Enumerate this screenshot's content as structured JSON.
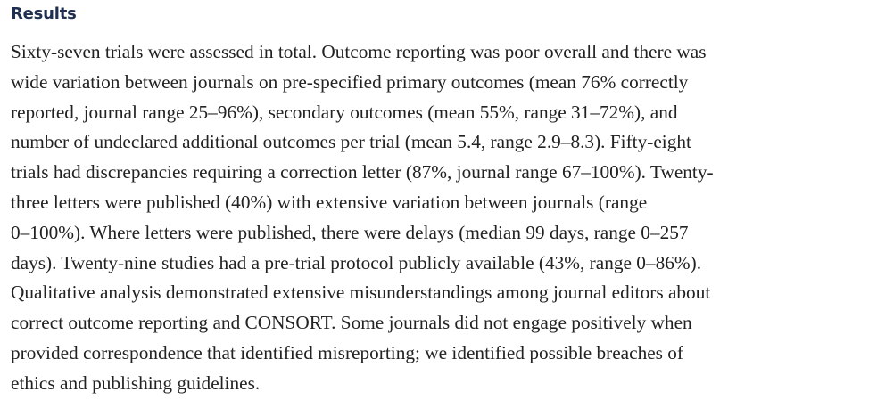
{
  "section": {
    "heading": "Results",
    "lines": [
      "Sixty-seven trials were assessed in total. Outcome reporting was poor overall and there was",
      "wide variation between journals on pre-specified primary outcomes (mean 76% correctly",
      "reported, journal range 25–96%), secondary outcomes (mean 55%, range 31–72%), and",
      "number of undeclared additional outcomes per trial (mean 5.4, range 2.9–8.3). Fifty-eight",
      "trials had discrepancies requiring a correction letter (87%, journal range 67–100%). Twenty-",
      "three letters were published (40%) with extensive variation between journals (range",
      "0–100%). Where letters were published, there were delays (median 99 days, range 0–257",
      "days). Twenty-nine studies had a pre-trial protocol publicly available (43%, range 0–86%).",
      "Qualitative analysis demonstrated extensive misunderstandings among journal editors about",
      "correct outcome reporting and CONSORT. Some journals did not engage positively when",
      "provided correspondence that identified misreporting; we identified possible breaches of",
      "ethics and publishing guidelines."
    ]
  }
}
